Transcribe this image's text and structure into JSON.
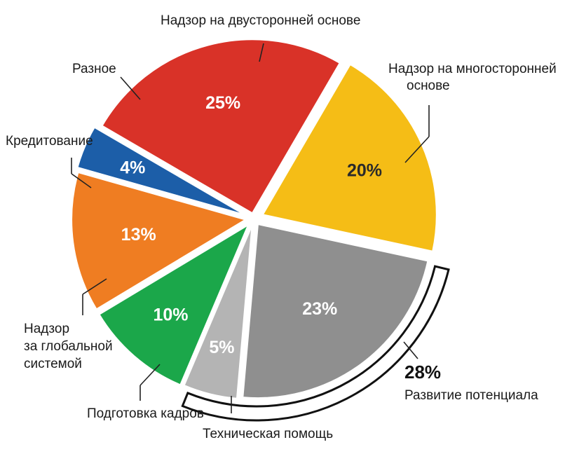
{
  "chart_data": {
    "type": "pie",
    "title": "",
    "slices": [
      {
        "label": "Надзор на двусторонней основе",
        "pct_label": "25%",
        "value": 25,
        "color": "#d93228",
        "text_color": "#ffffff"
      },
      {
        "label": "Надзор на многосторонней основе",
        "pct_label": "20%",
        "value": 20,
        "color": "#f5bd16",
        "text_color": "#2a2a2a"
      },
      {
        "label": "Техническая помощь",
        "pct_label": "23%",
        "value": 23,
        "color": "#8f8f8f",
        "text_color": "#ffffff"
      },
      {
        "label": "Подготовка кадров",
        "pct_label": "5%",
        "value": 5,
        "color": "#b4b4b4",
        "text_color": "#ffffff"
      },
      {
        "label": "Надзор за глобальной системой",
        "pct_label": "10%",
        "value": 10,
        "color": "#1ba74a",
        "text_color": "#ffffff"
      },
      {
        "label": "Кредитование",
        "pct_label": "13%",
        "value": 13,
        "color": "#ef7d22",
        "text_color": "#ffffff"
      },
      {
        "label": "Разное",
        "pct_label": "4%",
        "value": 4,
        "color": "#1c5ea8",
        "text_color": "#ffffff"
      }
    ],
    "group": {
      "pct_label": "28%",
      "label": "Развитие потенциала",
      "members": [
        "Техническая помощь",
        "Подготовка кадров"
      ]
    }
  },
  "labels": {
    "bilateral": "Надзор на двусторонней основе",
    "multilateral_1": "Надзор на многосторонней",
    "multilateral_2": "основе",
    "misc": "Разное",
    "lending": "Кредитование",
    "global_1": "Надзор",
    "global_2": "за глобальной",
    "global_3": "системой",
    "training": "Подготовка кадров",
    "techassist": "Техническая помощь"
  }
}
